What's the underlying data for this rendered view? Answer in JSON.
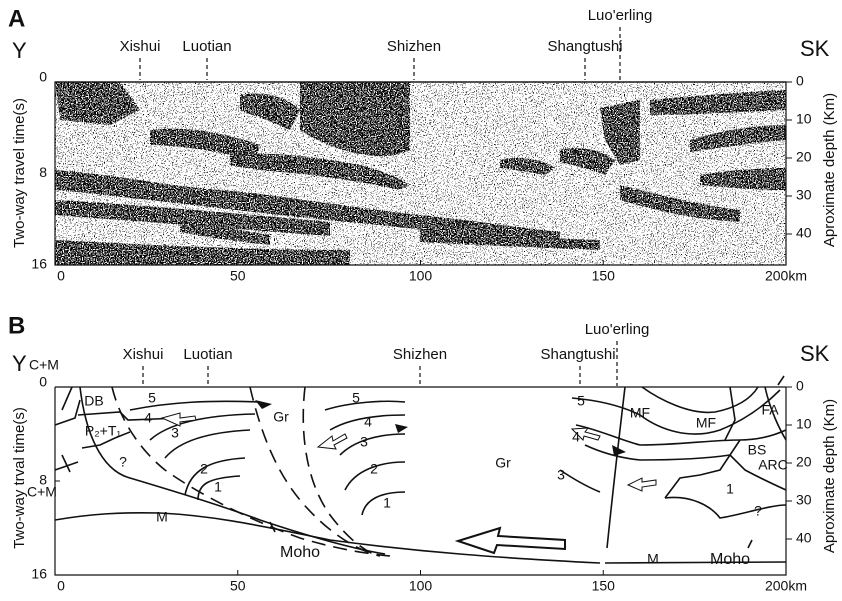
{
  "panel_a": {
    "label": "A",
    "left_end": "Y",
    "right_end": "SK",
    "places": [
      "Xishui",
      "Luotian",
      "Shizhen",
      "Shangtushi",
      "Luo'erling"
    ],
    "y_axis_label": "Two-way travel time(s)",
    "y_ticks": [
      "0",
      "8",
      "16"
    ],
    "depth_axis_label": "Aproximate depth (Km)",
    "depth_ticks": [
      "0",
      "10",
      "20",
      "30",
      "40"
    ],
    "x_ticks": [
      "0",
      "50",
      "100",
      "150",
      "200km"
    ]
  },
  "panel_b": {
    "label": "B",
    "left_end": "Y",
    "right_end": "SK",
    "places": [
      "Xishui",
      "Luotian",
      "Shizhen",
      "Shangtushi",
      "Luo'erling"
    ],
    "y_axis_label": "Two-way trval time(s)",
    "y_ticks": [
      "0",
      "8",
      "16"
    ],
    "depth_axis_label": "Aproximate depth (Km)",
    "depth_ticks": [
      "0",
      "10",
      "20",
      "30",
      "40"
    ],
    "x_ticks": [
      "0",
      "50",
      "100",
      "150",
      "200km"
    ],
    "annotations": [
      "C+M",
      "DB",
      "P₂+T₁",
      "?",
      "C+M",
      "5",
      "4",
      "3",
      "2",
      "1",
      "Gr",
      "5",
      "4",
      "3",
      "2",
      "1",
      "Gr",
      "5",
      "4",
      "3",
      "MF",
      "MF",
      "FA",
      "BS",
      "ARC",
      "1",
      "?",
      "M",
      "Moho",
      "M",
      "Moho"
    ]
  }
}
